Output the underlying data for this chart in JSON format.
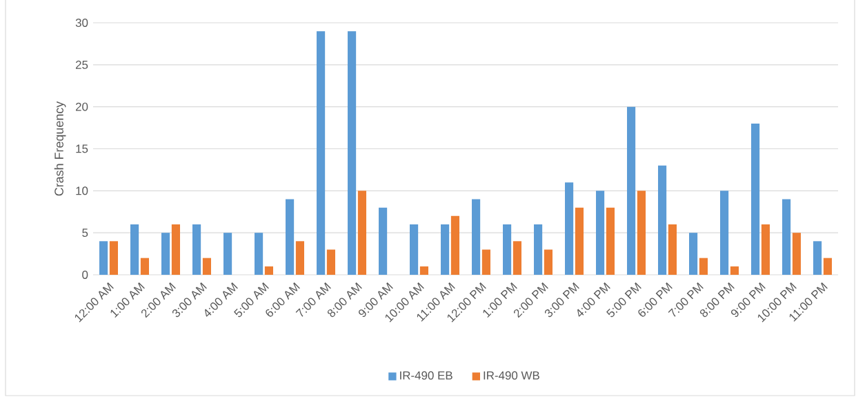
{
  "chart_data": {
    "type": "bar",
    "ylabel": "Crash Frequency",
    "categories": [
      "12:00 AM",
      "1:00 AM",
      "2:00 AM",
      "3:00 AM",
      "4:00 AM",
      "5:00 AM",
      "6:00 AM",
      "7:00 AM",
      "8:00 AM",
      "9:00 AM",
      "10:00 AM",
      "11:00 AM",
      "12:00 PM",
      "1:00 PM",
      "2:00 PM",
      "3:00 PM",
      "4:00 PM",
      "5:00 PM",
      "6:00 PM",
      "7:00 PM",
      "8:00 PM",
      "9:00 PM",
      "10:00 PM",
      "11:00 PM"
    ],
    "series": [
      {
        "name": "IR-490 EB",
        "color": "#5b9bd5",
        "values": [
          4,
          6,
          5,
          6,
          5,
          5,
          9,
          29,
          29,
          8,
          6,
          6,
          9,
          6,
          6,
          11,
          10,
          20,
          13,
          5,
          10,
          18,
          9,
          4
        ]
      },
      {
        "name": "IR-490 WB",
        "color": "#ed7d31",
        "values": [
          4,
          2,
          6,
          2,
          null,
          1,
          4,
          3,
          10,
          null,
          1,
          7,
          3,
          4,
          3,
          8,
          8,
          10,
          6,
          2,
          1,
          6,
          5,
          2
        ]
      }
    ],
    "ylim": [
      0,
      30
    ],
    "yticks": [
      0,
      5,
      10,
      15,
      20,
      25,
      30
    ],
    "grid": "y",
    "legend": "bottom"
  }
}
